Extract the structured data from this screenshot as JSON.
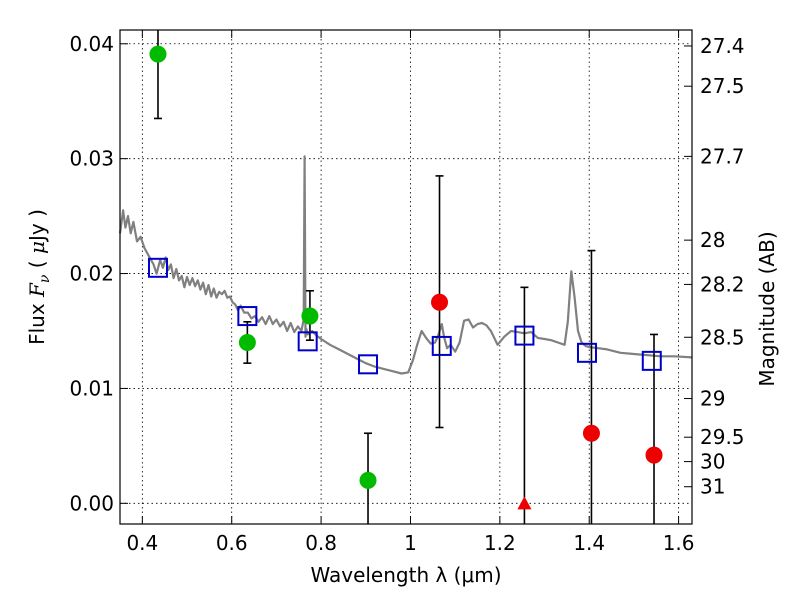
{
  "chart_data": {
    "type": "scatter",
    "xlabel": "Wavelength  λ (μm)",
    "ylabel": "Flux  F_ν  ( μJy )",
    "ylabel_parts": [
      "Flux ",
      "F",
      "ν",
      " ( ",
      "μ",
      "Jy )"
    ],
    "y2label": "Magnitude (AB)",
    "xlim": [
      0.35,
      1.63
    ],
    "ylim": [
      -0.0018,
      0.0412
    ],
    "grid": true,
    "x_ticks": [
      0.4,
      0.6,
      0.8,
      1.0,
      1.2,
      1.4,
      1.6
    ],
    "x_tick_labels": [
      "0.4",
      "0.6",
      "0.8",
      "1",
      "1.2",
      "1.4",
      "1.6"
    ],
    "y_ticks": [
      0.0,
      0.01,
      0.02,
      0.03,
      0.04
    ],
    "y_tick_labels": [
      "0.00",
      "0.01",
      "0.02",
      "0.03",
      "0.04"
    ],
    "mag_ticks": [
      27.4,
      27.5,
      27.7,
      28,
      28.2,
      28.5,
      29,
      29.5,
      30,
      31
    ],
    "mag_tick_labels": [
      "27.4",
      "27.5",
      "27.7",
      "28",
      "28.2",
      "28.5",
      "29",
      "29.5",
      "30",
      "31"
    ],
    "colors": {
      "model": "#808080",
      "green": "#00bb00",
      "red": "#ee0000",
      "blue": "#0000cc",
      "errorbar": "#000000"
    },
    "series": [
      {
        "marker": "circle",
        "color": "green",
        "points": [
          {
            "x": 0.435,
            "y": 0.0391,
            "err_lo": 0.0335,
            "err_hi": 0.0412
          },
          {
            "x": 0.635,
            "y": 0.014,
            "err_lo": 0.0122,
            "err_hi": 0.0158
          },
          {
            "x": 0.775,
            "y": 0.0163,
            "err_lo": 0.0142,
            "err_hi": 0.0185
          },
          {
            "x": 0.905,
            "y": 0.002,
            "err_lo": -0.0018,
            "err_hi": 0.0061
          }
        ]
      },
      {
        "marker": "circle",
        "color": "red",
        "points": [
          {
            "x": 1.065,
            "y": 0.0175,
            "err_lo": 0.0066,
            "err_hi": 0.0285
          },
          {
            "x": 1.405,
            "y": 0.0061,
            "err_lo": -0.0018,
            "err_hi": 0.022
          },
          {
            "x": 1.545,
            "y": 0.0042,
            "err_lo": -0.0018,
            "err_hi": 0.0147
          }
        ]
      },
      {
        "marker": "triangle",
        "color": "red",
        "points": [
          {
            "x": 1.255,
            "y": 0.0,
            "err_lo": -0.0018,
            "err_hi": 0.0188
          }
        ]
      },
      {
        "marker": "square",
        "color": "blue",
        "points": [
          {
            "x": 0.435,
            "y": 0.0205
          },
          {
            "x": 0.635,
            "y": 0.0163
          },
          {
            "x": 0.77,
            "y": 0.0141
          },
          {
            "x": 0.905,
            "y": 0.0121
          },
          {
            "x": 1.07,
            "y": 0.0137
          },
          {
            "x": 1.255,
            "y": 0.0146
          },
          {
            "x": 1.395,
            "y": 0.0131
          },
          {
            "x": 1.54,
            "y": 0.0124
          }
        ]
      }
    ],
    "model_spectrum": {
      "x": [
        0.35,
        0.357,
        0.362,
        0.368,
        0.374,
        0.38,
        0.388,
        0.396,
        0.405,
        0.415,
        0.425,
        0.432,
        0.44,
        0.446,
        0.452,
        0.458,
        0.464,
        0.47,
        0.476,
        0.482,
        0.488,
        0.494,
        0.5,
        0.506,
        0.512,
        0.518,
        0.524,
        0.53,
        0.536,
        0.542,
        0.548,
        0.554,
        0.56,
        0.566,
        0.572,
        0.578,
        0.584,
        0.59,
        0.596,
        0.602,
        0.608,
        0.614,
        0.62,
        0.628,
        0.636,
        0.644,
        0.652,
        0.66,
        0.668,
        0.676,
        0.684,
        0.692,
        0.7,
        0.708,
        0.716,
        0.724,
        0.732,
        0.74,
        0.748,
        0.756,
        0.761,
        0.763,
        0.765,
        0.767,
        0.77,
        0.78,
        0.79,
        0.8,
        0.82,
        0.84,
        0.86,
        0.88,
        0.9,
        0.92,
        0.94,
        0.96,
        0.98,
        0.995,
        1.005,
        1.015,
        1.025,
        1.035,
        1.045,
        1.055,
        1.062,
        1.07,
        1.075,
        1.082,
        1.09,
        1.1,
        1.11,
        1.12,
        1.13,
        1.14,
        1.15,
        1.16,
        1.17,
        1.18,
        1.195,
        1.21,
        1.225,
        1.24,
        1.255,
        1.27,
        1.285,
        1.3,
        1.315,
        1.33,
        1.345,
        1.352,
        1.36,
        1.367,
        1.375,
        1.383,
        1.392,
        1.4,
        1.42,
        1.44,
        1.47,
        1.5,
        1.53,
        1.56,
        1.59,
        1.63
      ],
      "y": [
        0.0235,
        0.0255,
        0.024,
        0.025,
        0.0235,
        0.0245,
        0.0228,
        0.0232,
        0.0222,
        0.0215,
        0.0208,
        0.02,
        0.0212,
        0.0205,
        0.0214,
        0.0203,
        0.0208,
        0.0196,
        0.0204,
        0.0194,
        0.0198,
        0.0188,
        0.0197,
        0.019,
        0.0196,
        0.0189,
        0.0194,
        0.0186,
        0.0192,
        0.0182,
        0.019,
        0.018,
        0.0187,
        0.0179,
        0.0184,
        0.0182,
        0.0185,
        0.0179,
        0.018,
        0.0175,
        0.0173,
        0.0168,
        0.0172,
        0.0166,
        0.0166,
        0.0161,
        0.0163,
        0.0158,
        0.0162,
        0.0156,
        0.0163,
        0.0156,
        0.016,
        0.0154,
        0.0158,
        0.015,
        0.0157,
        0.0149,
        0.0154,
        0.015,
        0.016,
        0.0302,
        0.0145,
        0.0152,
        0.0147,
        0.015,
        0.0146,
        0.0143,
        0.0138,
        0.0134,
        0.013,
        0.0126,
        0.0122,
        0.0119,
        0.0117,
        0.0115,
        0.0113,
        0.0114,
        0.0124,
        0.0138,
        0.015,
        0.0144,
        0.0139,
        0.014,
        0.0146,
        0.0156,
        0.0145,
        0.0135,
        0.0138,
        0.0132,
        0.014,
        0.0159,
        0.016,
        0.0153,
        0.0156,
        0.0157,
        0.0155,
        0.015,
        0.0138,
        0.0145,
        0.015,
        0.0149,
        0.0148,
        0.0149,
        0.0144,
        0.0143,
        0.0142,
        0.014,
        0.0138,
        0.0158,
        0.0202,
        0.018,
        0.015,
        0.014,
        0.0137,
        0.0136,
        0.0135,
        0.0134,
        0.0131,
        0.013,
        0.0129,
        0.0128,
        0.0128,
        0.0127
      ]
    }
  }
}
